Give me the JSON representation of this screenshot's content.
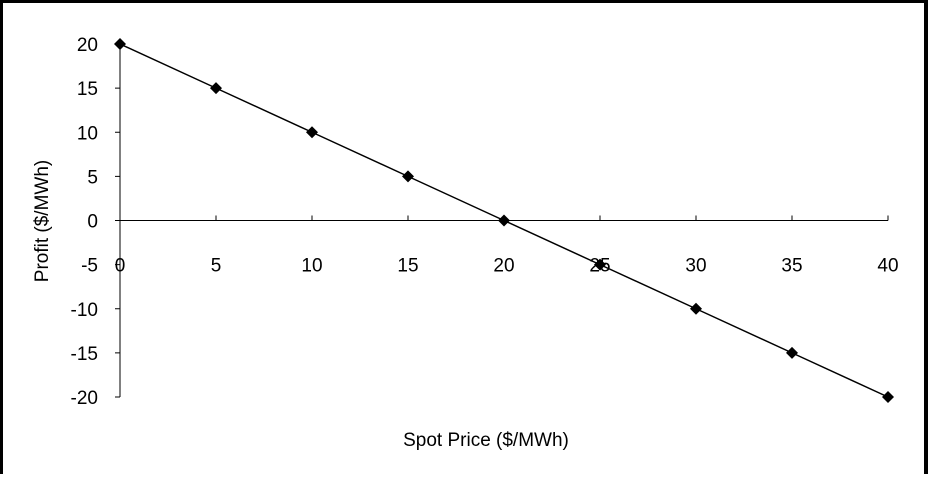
{
  "chart_data": {
    "type": "line",
    "title": "",
    "xlabel": "Spot Price ($/MWh)",
    "ylabel": "Profit  ($/MWh)",
    "x": [
      0,
      5,
      10,
      15,
      20,
      25,
      30,
      35,
      40
    ],
    "series": [
      {
        "values": [
          20,
          15,
          10,
          5,
          0,
          -5,
          -10,
          -15,
          -20
        ]
      }
    ],
    "xlim": [
      0,
      40
    ],
    "ylim": [
      -20,
      20
    ],
    "x_ticks": [
      "0",
      "5",
      "10",
      "15",
      "20",
      "25",
      "30",
      "35",
      "40"
    ],
    "y_ticks": [
      "20",
      "15",
      "10",
      "5",
      "0",
      "-5",
      "-10",
      "-15",
      "-20"
    ],
    "grid": false,
    "legend": "none",
    "marker": "diamond",
    "line_color": "#000000"
  }
}
